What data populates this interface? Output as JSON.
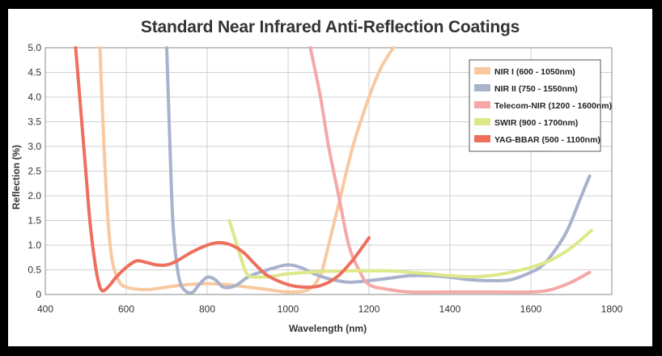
{
  "chart_data": {
    "type": "line",
    "title": "Standard Near Infrared Anti-Reflection Coatings",
    "xlabel": "Wavelength (nm)",
    "ylabel": "Reflection (%)",
    "xlim": [
      400,
      1800
    ],
    "ylim": [
      0,
      5.0
    ],
    "xticks": [
      "400",
      "600",
      "800",
      "1000",
      "1200",
      "1400",
      "1600",
      "1800"
    ],
    "yticks": [
      "0",
      "0.5",
      "1.0",
      "1.5",
      "2.0",
      "2.5",
      "3.0",
      "3.5",
      "4.0",
      "4.5",
      "5.0"
    ],
    "grid": true,
    "legend_position": "top-right",
    "series": [
      {
        "name": "NIR I (600 - 1050nm)",
        "color": "#f8c9a0",
        "points": [
          [
            535,
            5.0
          ],
          [
            545,
            3.0
          ],
          [
            555,
            1.5
          ],
          [
            565,
            0.7
          ],
          [
            580,
            0.3
          ],
          [
            600,
            0.15
          ],
          [
            650,
            0.1
          ],
          [
            700,
            0.15
          ],
          [
            750,
            0.2
          ],
          [
            800,
            0.22
          ],
          [
            850,
            0.2
          ],
          [
            900,
            0.15
          ],
          [
            950,
            0.1
          ],
          [
            1000,
            0.05
          ],
          [
            1050,
            0.1
          ],
          [
            1080,
            0.4
          ],
          [
            1100,
            1.0
          ],
          [
            1130,
            2.0
          ],
          [
            1160,
            3.0
          ],
          [
            1200,
            4.0
          ],
          [
            1230,
            4.6
          ],
          [
            1260,
            5.0
          ]
        ]
      },
      {
        "name": "NIR II (750 - 1550nm)",
        "color": "#a8b2cc",
        "points": [
          [
            700,
            5.0
          ],
          [
            708,
            3.0
          ],
          [
            715,
            1.5
          ],
          [
            725,
            0.6
          ],
          [
            735,
            0.2
          ],
          [
            750,
            0.05
          ],
          [
            765,
            0.05
          ],
          [
            780,
            0.2
          ],
          [
            800,
            0.35
          ],
          [
            820,
            0.3
          ],
          [
            840,
            0.15
          ],
          [
            870,
            0.18
          ],
          [
            900,
            0.35
          ],
          [
            930,
            0.45
          ],
          [
            970,
            0.55
          ],
          [
            1000,
            0.6
          ],
          [
            1030,
            0.55
          ],
          [
            1070,
            0.4
          ],
          [
            1110,
            0.3
          ],
          [
            1150,
            0.25
          ],
          [
            1200,
            0.28
          ],
          [
            1250,
            0.33
          ],
          [
            1300,
            0.38
          ],
          [
            1350,
            0.38
          ],
          [
            1400,
            0.35
          ],
          [
            1450,
            0.3
          ],
          [
            1500,
            0.28
          ],
          [
            1550,
            0.3
          ],
          [
            1600,
            0.45
          ],
          [
            1630,
            0.6
          ],
          [
            1660,
            0.9
          ],
          [
            1690,
            1.3
          ],
          [
            1720,
            1.9
          ],
          [
            1745,
            2.4
          ]
        ]
      },
      {
        "name": "Telecom-NIR (1200 - 1600nm)",
        "color": "#f4a8a8",
        "points": [
          [
            1055,
            5.0
          ],
          [
            1080,
            4.0
          ],
          [
            1100,
            3.0
          ],
          [
            1125,
            2.0
          ],
          [
            1150,
            1.0
          ],
          [
            1175,
            0.5
          ],
          [
            1200,
            0.2
          ],
          [
            1250,
            0.1
          ],
          [
            1300,
            0.05
          ],
          [
            1400,
            0.05
          ],
          [
            1500,
            0.05
          ],
          [
            1600,
            0.05
          ],
          [
            1650,
            0.1
          ],
          [
            1700,
            0.25
          ],
          [
            1745,
            0.45
          ]
        ]
      },
      {
        "name": "SWIR (900 - 1700nm)",
        "color": "#dde888",
        "points": [
          [
            855,
            1.5
          ],
          [
            870,
            1.1
          ],
          [
            885,
            0.7
          ],
          [
            900,
            0.4
          ],
          [
            930,
            0.35
          ],
          [
            970,
            0.38
          ],
          [
            1000,
            0.42
          ],
          [
            1050,
            0.45
          ],
          [
            1100,
            0.47
          ],
          [
            1150,
            0.48
          ],
          [
            1200,
            0.48
          ],
          [
            1250,
            0.48
          ],
          [
            1300,
            0.45
          ],
          [
            1350,
            0.42
          ],
          [
            1400,
            0.38
          ],
          [
            1450,
            0.36
          ],
          [
            1500,
            0.38
          ],
          [
            1550,
            0.45
          ],
          [
            1600,
            0.55
          ],
          [
            1650,
            0.7
          ],
          [
            1700,
            0.95
          ],
          [
            1750,
            1.3
          ]
        ]
      },
      {
        "name": "YAG-BBAR (500 - 1100nm)",
        "color": "#ee6f5e",
        "points": [
          [
            475,
            5.0
          ],
          [
            490,
            3.5
          ],
          [
            500,
            2.5
          ],
          [
            510,
            1.5
          ],
          [
            520,
            0.8
          ],
          [
            530,
            0.3
          ],
          [
            540,
            0.08
          ],
          [
            555,
            0.15
          ],
          [
            575,
            0.35
          ],
          [
            600,
            0.55
          ],
          [
            625,
            0.68
          ],
          [
            650,
            0.65
          ],
          [
            675,
            0.6
          ],
          [
            700,
            0.6
          ],
          [
            725,
            0.68
          ],
          [
            760,
            0.85
          ],
          [
            800,
            1.0
          ],
          [
            830,
            1.05
          ],
          [
            860,
            1.0
          ],
          [
            890,
            0.85
          ],
          [
            920,
            0.6
          ],
          [
            950,
            0.38
          ],
          [
            1000,
            0.2
          ],
          [
            1040,
            0.15
          ],
          [
            1080,
            0.18
          ],
          [
            1120,
            0.35
          ],
          [
            1160,
            0.7
          ],
          [
            1200,
            1.15
          ]
        ]
      }
    ]
  }
}
